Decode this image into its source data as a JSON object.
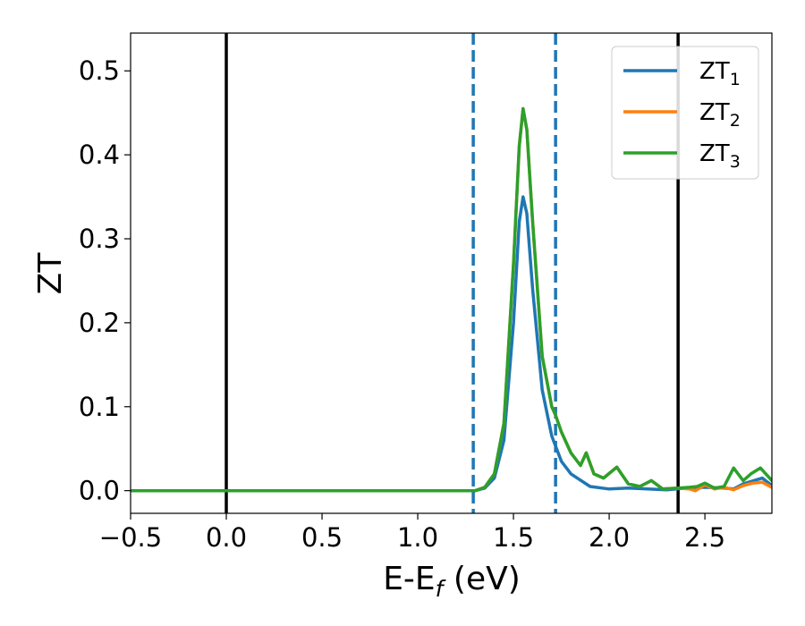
{
  "chart_data": {
    "type": "line",
    "title": "",
    "xlabel": "E-E",
    "xlabel_sub": "f",
    "xlabel_unit": " (eV)",
    "ylabel": "ZT",
    "xlim": [
      -0.5,
      2.85
    ],
    "ylim": [
      -0.027,
      0.545
    ],
    "xticks": [
      -0.5,
      0.0,
      0.5,
      1.0,
      1.5,
      2.0,
      2.5
    ],
    "xtick_labels": [
      "−0.5",
      "0.0",
      "0.5",
      "1.0",
      "1.5",
      "2.0",
      "2.5"
    ],
    "yticks": [
      0.0,
      0.1,
      0.2,
      0.3,
      0.4,
      0.5
    ],
    "ytick_labels": [
      "0.0",
      "0.1",
      "0.2",
      "0.3",
      "0.4",
      "0.5"
    ],
    "grid": false,
    "legend_position": "top-right",
    "vlines": [
      {
        "x": 0.0,
        "style": "solid",
        "color": "#000000"
      },
      {
        "x": 2.36,
        "style": "solid",
        "color": "#000000"
      },
      {
        "x": 1.29,
        "style": "dashed",
        "color": "#1f77b4"
      },
      {
        "x": 1.72,
        "style": "dashed",
        "color": "#1f77b4"
      }
    ],
    "series": [
      {
        "name": "ZT",
        "name_sub": "1",
        "color": "#1f77b4",
        "x": [
          -0.5,
          1.2,
          1.3,
          1.35,
          1.4,
          1.45,
          1.5,
          1.53,
          1.55,
          1.57,
          1.6,
          1.65,
          1.7,
          1.75,
          1.8,
          1.9,
          2.0,
          2.1,
          2.2,
          2.3,
          2.4,
          2.5,
          2.6,
          2.65,
          2.7,
          2.8,
          2.85
        ],
        "y": [
          0.0,
          0.0,
          0.0,
          0.003,
          0.015,
          0.06,
          0.2,
          0.32,
          0.35,
          0.33,
          0.24,
          0.12,
          0.065,
          0.035,
          0.02,
          0.005,
          0.002,
          0.003,
          0.002,
          0.001,
          0.003,
          0.004,
          0.003,
          0.002,
          0.008,
          0.015,
          0.006
        ]
      },
      {
        "name": "ZT",
        "name_sub": "2",
        "color": "#ff7f0e",
        "x": [
          -0.5,
          1.2,
          1.3,
          1.35,
          1.4,
          1.45,
          1.5,
          1.53,
          1.55,
          1.57,
          1.6,
          1.65,
          1.7,
          1.72,
          1.75,
          1.8,
          1.85,
          1.88,
          1.92,
          1.97,
          2.04,
          2.1,
          2.16,
          2.22,
          2.28,
          2.36,
          2.42,
          2.45,
          2.5,
          2.55,
          2.6,
          2.65,
          2.7,
          2.75,
          2.8,
          2.85
        ],
        "y": [
          0.0,
          0.0,
          0.0,
          0.004,
          0.02,
          0.08,
          0.27,
          0.41,
          0.455,
          0.43,
          0.32,
          0.16,
          0.1,
          0.09,
          0.07,
          0.045,
          0.03,
          0.045,
          0.02,
          0.015,
          0.028,
          0.008,
          0.005,
          0.012,
          0.002,
          0.003,
          0.002,
          0.0,
          0.007,
          0.002,
          0.004,
          0.001,
          0.006,
          0.009,
          0.01,
          0.004
        ]
      },
      {
        "name": "ZT",
        "name_sub": "3",
        "color": "#2ca02c",
        "x": [
          -0.5,
          1.2,
          1.3,
          1.35,
          1.4,
          1.45,
          1.5,
          1.53,
          1.55,
          1.57,
          1.6,
          1.65,
          1.7,
          1.72,
          1.75,
          1.8,
          1.85,
          1.88,
          1.92,
          1.97,
          2.04,
          2.1,
          2.16,
          2.22,
          2.28,
          2.36,
          2.42,
          2.46,
          2.5,
          2.55,
          2.6,
          2.65,
          2.7,
          2.74,
          2.79,
          2.85
        ],
        "y": [
          0.0,
          0.0,
          0.0,
          0.004,
          0.02,
          0.08,
          0.27,
          0.41,
          0.455,
          0.43,
          0.32,
          0.16,
          0.1,
          0.09,
          0.07,
          0.045,
          0.03,
          0.045,
          0.02,
          0.015,
          0.028,
          0.008,
          0.005,
          0.012,
          0.002,
          0.003,
          0.004,
          0.005,
          0.009,
          0.003,
          0.005,
          0.027,
          0.012,
          0.02,
          0.027,
          0.012
        ]
      }
    ]
  }
}
